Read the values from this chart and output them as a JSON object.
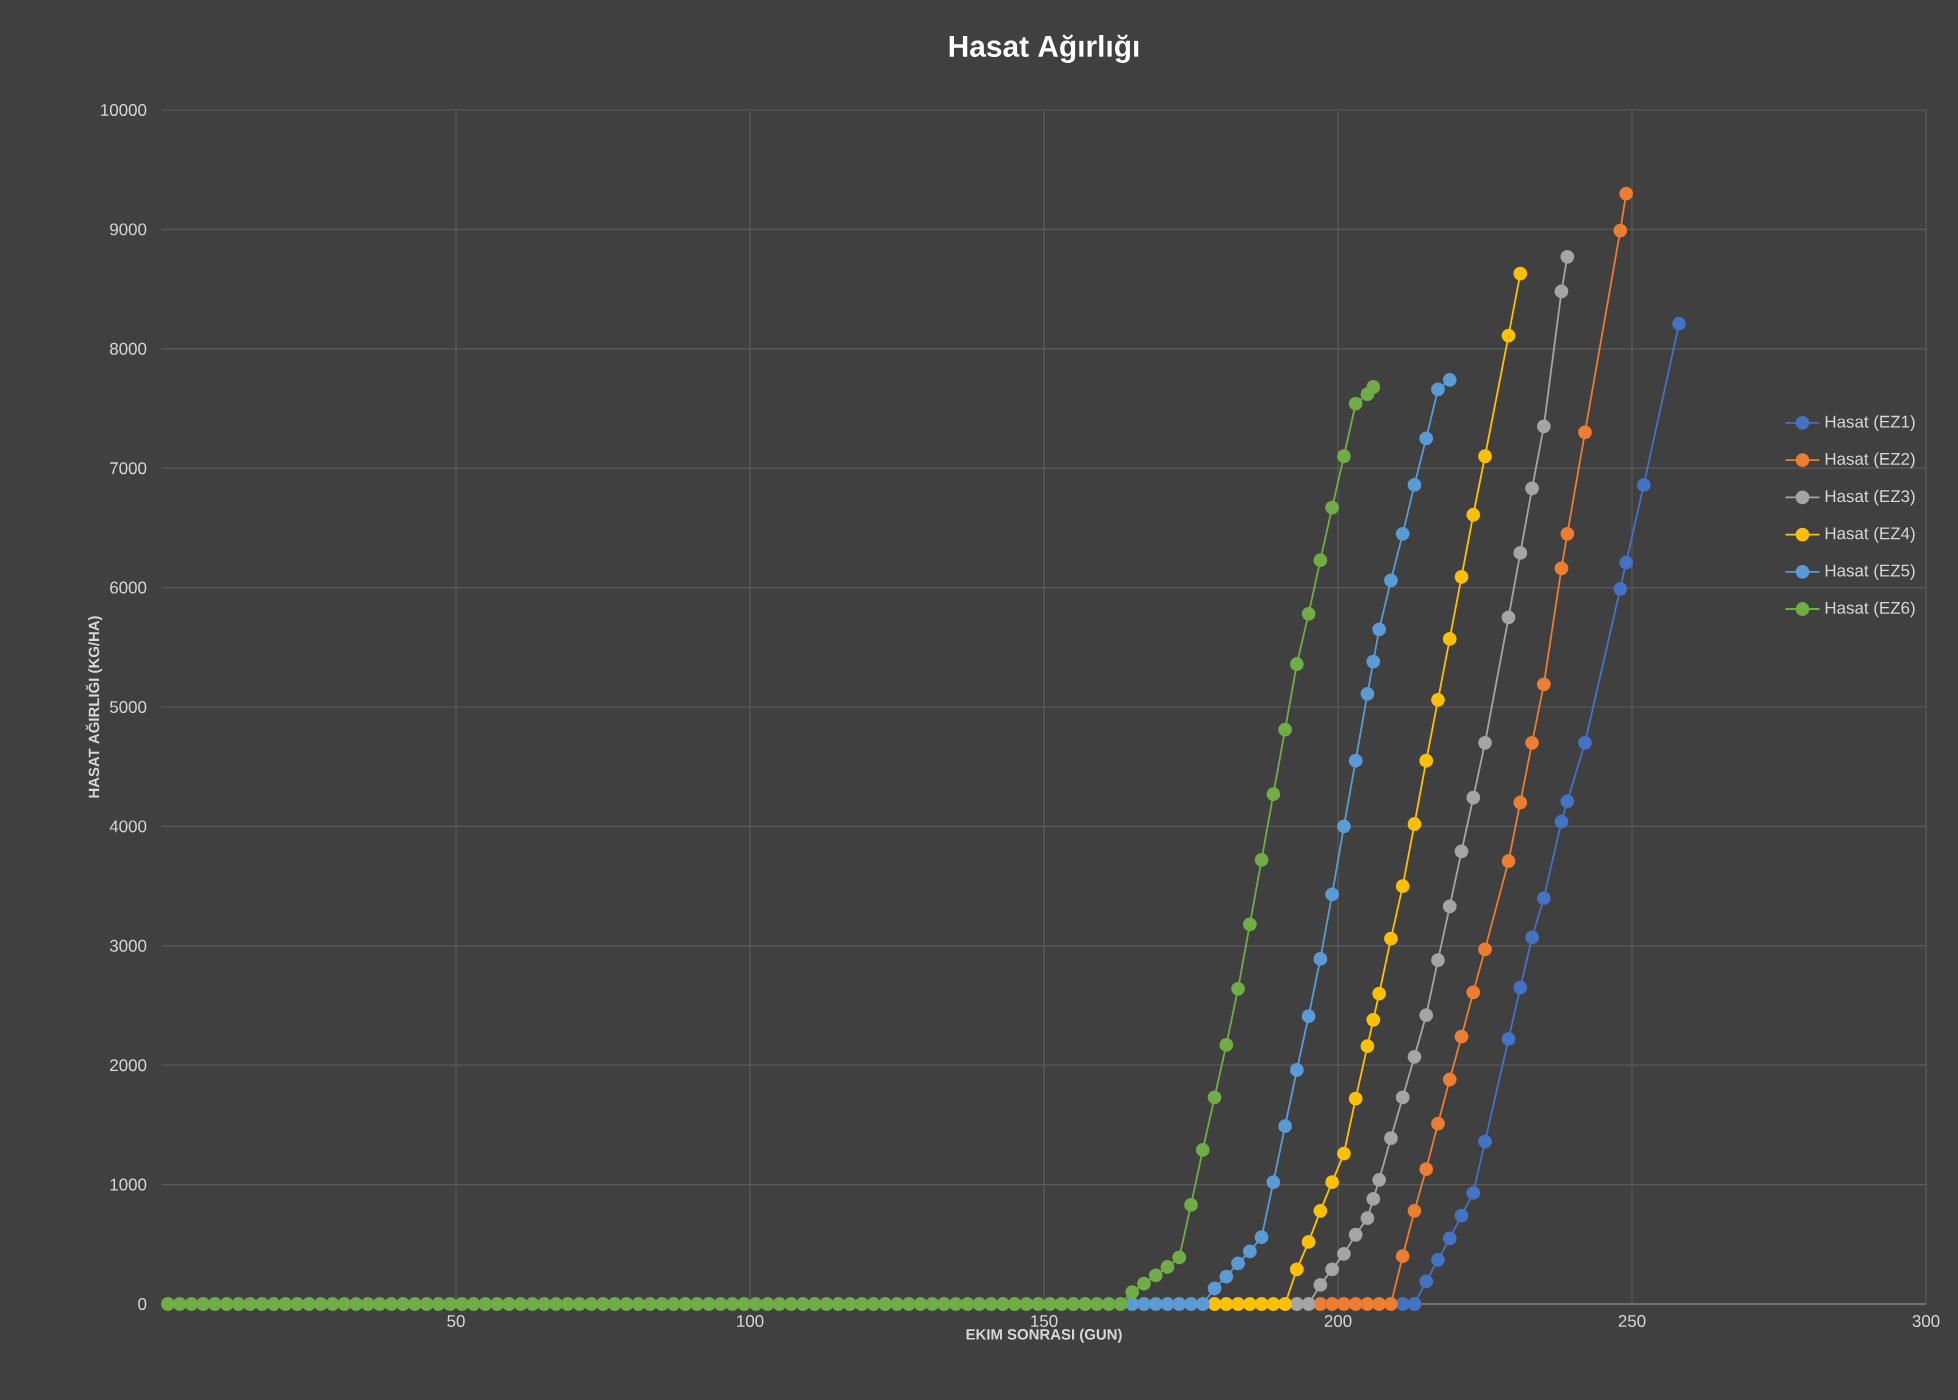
{
  "chart_data": {
    "type": "line",
    "title": "Hasat Ağırlığı",
    "xlabel": "EKIM SONRASI (GUN)",
    "ylabel": "HASAT AĞIRLIĞI  (KG/HA)",
    "xlim": [
      0,
      300
    ],
    "xticks": [
      50,
      100,
      150,
      200,
      250,
      300
    ],
    "ylim": [
      0,
      10000
    ],
    "yticks": [
      0,
      1000,
      2000,
      3000,
      4000,
      5000,
      6000,
      7000,
      8000,
      9000,
      10000
    ],
    "grid": true,
    "legend": "right",
    "marker": "circle",
    "line_style": "solid",
    "series": [
      {
        "name": "Hasat (EZ1)",
        "color": "#4472c4",
        "x": [
          211,
          213,
          215,
          217,
          219,
          221,
          223,
          225,
          229,
          231,
          233,
          235,
          238,
          239,
          242,
          248,
          249,
          252,
          258
        ],
        "values": [
          0,
          0,
          190,
          370,
          550,
          740,
          930,
          1360,
          2220,
          2650,
          3070,
          3400,
          4040,
          4210,
          4700,
          5990,
          6210,
          6860,
          8210
        ]
      },
      {
        "name": "Hasat (EZ2)",
        "color": "#ed7d31",
        "x": [
          197,
          199,
          201,
          203,
          205,
          207,
          209,
          211,
          213,
          215,
          217,
          219,
          221,
          223,
          225,
          229,
          231,
          233,
          235,
          238,
          239,
          242,
          248,
          249
        ],
        "values": [
          0,
          0,
          0,
          0,
          0,
          0,
          0,
          400,
          780,
          1130,
          1510,
          1880,
          2240,
          2610,
          2970,
          3710,
          4200,
          4700,
          5190,
          6160,
          6450,
          7300,
          8990,
          9300
        ]
      },
      {
        "name": "Hasat (EZ3)",
        "color": "#a5a5a5",
        "x": [
          193,
          195,
          197,
          199,
          201,
          203,
          205,
          206,
          207,
          209,
          211,
          213,
          215,
          217,
          219,
          221,
          223,
          225,
          229,
          231,
          233,
          235,
          238,
          239
        ],
        "values": [
          0,
          0,
          160,
          290,
          420,
          580,
          720,
          880,
          1040,
          1390,
          1730,
          2070,
          2420,
          2880,
          3330,
          3790,
          4240,
          4700,
          5750,
          6290,
          6830,
          7350,
          8480,
          8770
        ]
      },
      {
        "name": "Hasat (EZ4)",
        "color": "#ffc000",
        "x": [
          179,
          181,
          183,
          185,
          187,
          189,
          191,
          193,
          195,
          197,
          199,
          201,
          203,
          205,
          206,
          207,
          209,
          211,
          213,
          215,
          217,
          219,
          221,
          223,
          225,
          229,
          231
        ],
        "values": [
          0,
          0,
          0,
          0,
          0,
          0,
          0,
          290,
          520,
          780,
          1020,
          1260,
          1720,
          2160,
          2380,
          2600,
          3060,
          3500,
          4020,
          4550,
          5060,
          5570,
          6090,
          6610,
          7100,
          8110,
          8630
        ]
      },
      {
        "name": "Hasat (EZ5)",
        "color": "#5b9bd5",
        "x": [
          165,
          167,
          169,
          171,
          173,
          175,
          177,
          179,
          181,
          183,
          185,
          187,
          189,
          191,
          193,
          195,
          197,
          199,
          201,
          203,
          205,
          206,
          207,
          209,
          211,
          213,
          215,
          217,
          219
        ],
        "values": [
          0,
          0,
          0,
          0,
          0,
          0,
          0,
          130,
          230,
          340,
          440,
          560,
          1020,
          1490,
          1960,
          2410,
          2890,
          3430,
          4000,
          4550,
          5110,
          5380,
          5650,
          6060,
          6450,
          6860,
          7250,
          7660,
          7740
        ]
      },
      {
        "name": "Hasat (EZ6)",
        "color": "#70ad47",
        "x": [
          1,
          3,
          5,
          7,
          9,
          11,
          13,
          15,
          17,
          19,
          21,
          23,
          25,
          27,
          29,
          31,
          33,
          35,
          37,
          39,
          41,
          43,
          45,
          47,
          49,
          51,
          53,
          55,
          57,
          59,
          61,
          63,
          65,
          67,
          69,
          71,
          73,
          75,
          77,
          79,
          81,
          83,
          85,
          87,
          89,
          91,
          93,
          95,
          97,
          99,
          101,
          103,
          105,
          107,
          109,
          111,
          113,
          115,
          117,
          119,
          121,
          123,
          125,
          127,
          129,
          131,
          133,
          135,
          137,
          139,
          141,
          143,
          145,
          147,
          149,
          151,
          153,
          155,
          157,
          159,
          161,
          163,
          165,
          167,
          169,
          171,
          173,
          175,
          177,
          179,
          181,
          183,
          185,
          187,
          189,
          191,
          193,
          195,
          197,
          199,
          201,
          203,
          205,
          206
        ],
        "values": [
          0,
          0,
          0,
          0,
          0,
          0,
          0,
          0,
          0,
          0,
          0,
          0,
          0,
          0,
          0,
          0,
          0,
          0,
          0,
          0,
          0,
          0,
          0,
          0,
          0,
          0,
          0,
          0,
          0,
          0,
          0,
          0,
          0,
          0,
          0,
          0,
          0,
          0,
          0,
          0,
          0,
          0,
          0,
          0,
          0,
          0,
          0,
          0,
          0,
          0,
          0,
          0,
          0,
          0,
          0,
          0,
          0,
          0,
          0,
          0,
          0,
          0,
          0,
          0,
          0,
          0,
          0,
          0,
          0,
          0,
          0,
          0,
          0,
          0,
          0,
          0,
          0,
          0,
          0,
          0,
          0,
          0,
          100,
          170,
          240,
          310,
          390,
          830,
          1290,
          1730,
          2170,
          2640,
          3180,
          3720,
          4270,
          4810,
          5360,
          5780,
          6230,
          6670,
          7100,
          7540,
          7620,
          7680
        ]
      }
    ]
  }
}
